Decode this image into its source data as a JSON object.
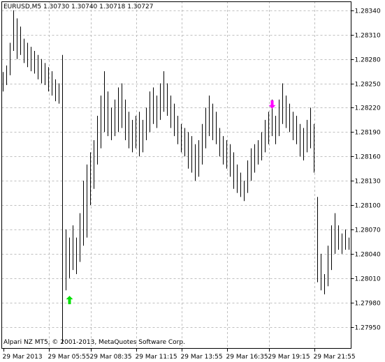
{
  "chart_data": {
    "type": "ohlc",
    "title": "EURUSD,M5  1.30730 1.30740 1.30718 1.30727",
    "footer": "Alpari NZ MT5, © 2001-2013, MetaQuotes Software Corp.",
    "color": "#000000",
    "grid": true,
    "high": [
      1.28264,
      1.28272,
      1.283,
      1.2834,
      1.2833,
      1.2832,
      1.28305,
      1.283,
      1.28295,
      1.2829,
      1.28285,
      1.2828,
      1.28275,
      1.2827,
      1.28265,
      1.28255,
      1.2825,
      1.28285,
      1.2807,
      1.2806,
      1.28075,
      1.2806,
      1.2809,
      1.2813,
      1.2815,
      1.28165,
      1.2818,
      1.2821,
      1.28235,
      1.28265,
      1.2824,
      1.2822,
      1.2823,
      1.28245,
      1.2825,
      1.2823,
      1.28215,
      1.28205,
      1.2821,
      1.28215,
      1.28205,
      1.2822,
      1.2824,
      1.28245,
      1.28235,
      1.2825,
      1.28265,
      1.2825,
      1.28235,
      1.28225,
      1.2821,
      1.282,
      1.28195,
      1.2819,
      1.28185,
      1.28175,
      1.2818,
      1.282,
      1.2822,
      1.28235,
      1.28225,
      1.28215,
      1.28195,
      1.28185,
      1.2818,
      1.28175,
      1.28165,
      1.2815,
      1.2814,
      1.2813,
      1.28155,
      1.2817,
      1.28175,
      1.2818,
      1.2819,
      1.28205,
      1.28215,
      1.2823,
      1.2821,
      1.2823,
      1.2825,
      1.28235,
      1.28225,
      1.28215,
      1.2821,
      1.282,
      1.28195,
      1.28205,
      1.2822,
      1.282,
      1.2811,
      1.2804,
      1.28015,
      1.2805,
      1.28075,
      1.2809,
      1.28075,
      1.28065,
      1.2807,
      1.2806
    ],
    "low": [
      1.2824,
      1.28248,
      1.2826,
      1.2829,
      1.2828,
      1.28285,
      1.28275,
      1.2827,
      1.28265,
      1.28262,
      1.28255,
      1.2825,
      1.28248,
      1.2824,
      1.28235,
      1.28228,
      1.28225,
      1.2793,
      1.27995,
      1.2801,
      1.2802,
      1.28015,
      1.2803,
      1.2805,
      1.2806,
      1.281,
      1.2812,
      1.2815,
      1.2817,
      1.2819,
      1.28185,
      1.2818,
      1.28185,
      1.2819,
      1.28195,
      1.2818,
      1.2817,
      1.28165,
      1.2817,
      1.2816,
      1.28165,
      1.2818,
      1.2819,
      1.282,
      1.28195,
      1.28205,
      1.28215,
      1.2821,
      1.28195,
      1.28185,
      1.28175,
      1.28165,
      1.2816,
      1.28145,
      1.2814,
      1.2813,
      1.28135,
      1.2815,
      1.2817,
      1.28185,
      1.2818,
      1.28175,
      1.2816,
      1.2815,
      1.28145,
      1.28135,
      1.2812,
      1.28115,
      1.2811,
      1.28105,
      1.28115,
      1.2813,
      1.2814,
      1.2815,
      1.28155,
      1.28165,
      1.28175,
      1.28185,
      1.28175,
      1.28185,
      1.282,
      1.28195,
      1.2819,
      1.2818,
      1.28175,
      1.2816,
      1.28155,
      1.28165,
      1.2817,
      1.2814,
      1.28005,
      1.27995,
      1.2799,
      1.28,
      1.2802,
      1.2804,
      1.28045,
      1.2804,
      1.28045,
      1.28045
    ],
    "markers": [
      {
        "bar": 19,
        "value": 1.27983,
        "direction": "up",
        "color": "#00e000"
      },
      {
        "bar": 77,
        "value": 1.28224,
        "direction": "down",
        "color": "#ff00ff"
      }
    ],
    "ylim": [
      1.27923,
      1.28351
    ],
    "yticks": [
      {
        "value": 1.2834,
        "label": "1.28340"
      },
      {
        "value": 1.2831,
        "label": "1.28310"
      },
      {
        "value": 1.2828,
        "label": "1.28280"
      },
      {
        "value": 1.2825,
        "label": "1.28250"
      },
      {
        "value": 1.2822,
        "label": "1.28220"
      },
      {
        "value": 1.2819,
        "label": "1.28190"
      },
      {
        "value": 1.2816,
        "label": "1.28160"
      },
      {
        "value": 1.2813,
        "label": "1.28130"
      },
      {
        "value": 1.281,
        "label": "1.28100"
      },
      {
        "value": 1.2807,
        "label": "1.28070"
      },
      {
        "value": 1.2804,
        "label": "1.28040"
      },
      {
        "value": 1.2801,
        "label": "1.28010"
      },
      {
        "value": 1.2798,
        "label": "1.27980"
      },
      {
        "value": 1.2795,
        "label": "1.27950"
      }
    ],
    "xticks": [
      {
        "value": 0,
        "label": "29 Mar 2013"
      },
      {
        "value": 13,
        "label": "29 Mar 05:55"
      },
      {
        "value": 25,
        "label": "29 Mar 08:35"
      },
      {
        "value": 38,
        "label": "29 Mar 11:15"
      },
      {
        "value": 51,
        "label": "29 Mar 13:55"
      },
      {
        "value": 64,
        "label": "29 Mar 16:35"
      },
      {
        "value": 76,
        "label": "29 Mar 19:15"
      },
      {
        "value": 89,
        "label": "29 Mar 21:55"
      }
    ]
  }
}
